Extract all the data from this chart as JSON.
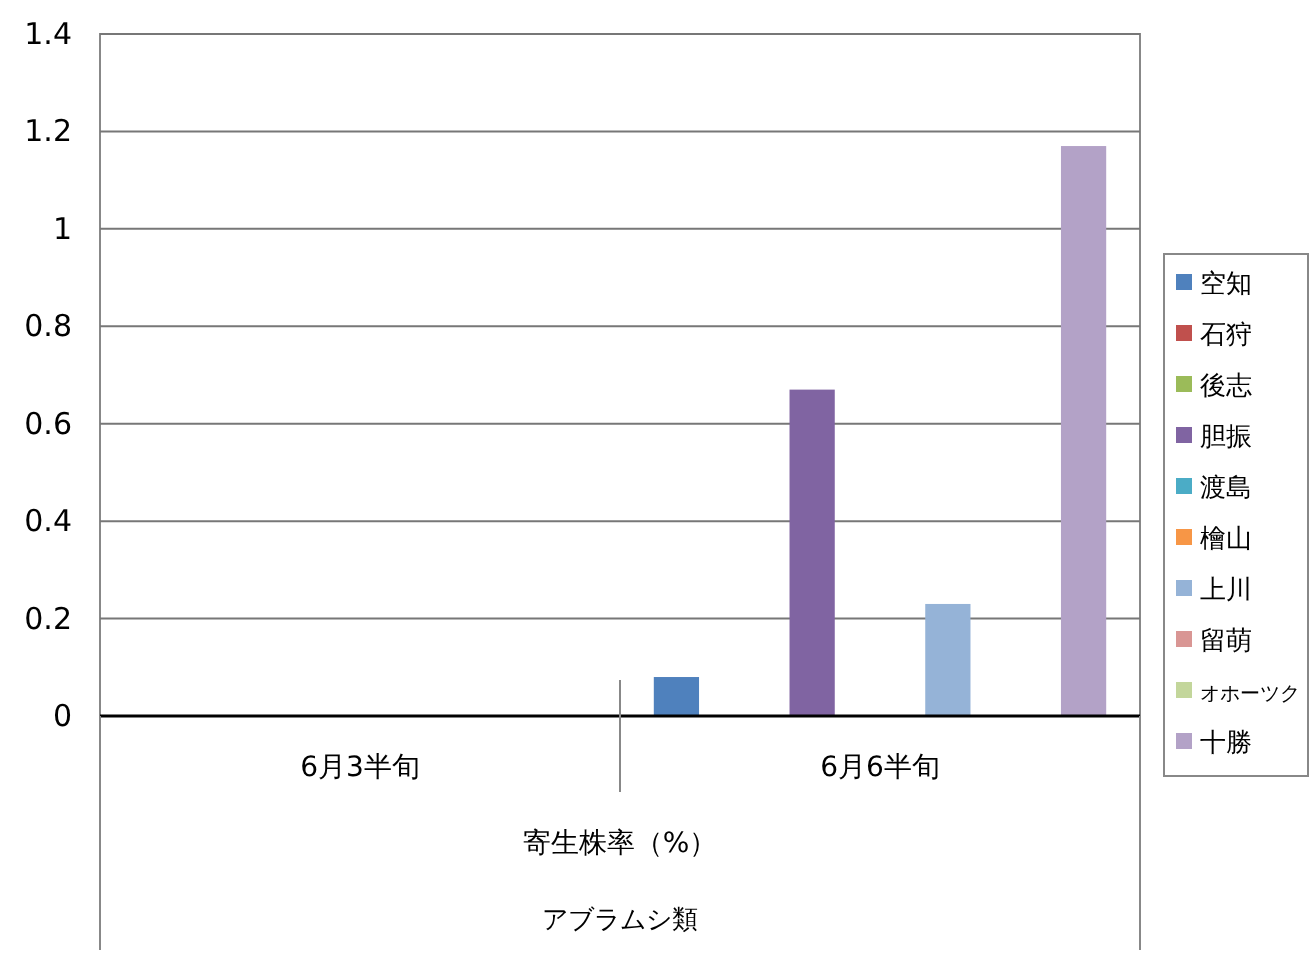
{
  "chart_data": {
    "type": "bar",
    "categories": [
      "6月3半旬",
      "6月6半旬"
    ],
    "xlabel": "寄生株率（%）",
    "annotations": [
      "アブラムシ類"
    ],
    "ylim": [
      0,
      1.4
    ],
    "yticks": [
      0,
      0.2,
      0.4,
      0.6,
      0.8,
      1,
      1.2,
      1.4
    ],
    "grid": "y",
    "legend": "right",
    "series": [
      {
        "name": "空知",
        "color": "#4f81bd",
        "values": [
          0,
          0.08
        ]
      },
      {
        "name": "石狩",
        "color": "#c0504d",
        "values": [
          0,
          0
        ]
      },
      {
        "name": "後志",
        "color": "#9bbb59",
        "values": [
          0,
          0
        ]
      },
      {
        "name": "胆振",
        "color": "#8064a2",
        "values": [
          0,
          0.67
        ]
      },
      {
        "name": "渡島",
        "color": "#4bacc6",
        "values": [
          0,
          0
        ]
      },
      {
        "name": "檜山",
        "color": "#f79646",
        "values": [
          0,
          0
        ]
      },
      {
        "name": "上川",
        "color": "#95b3d7",
        "values": [
          0,
          0.23
        ]
      },
      {
        "name": "留萌",
        "color": "#d99694",
        "values": [
          0,
          0
        ]
      },
      {
        "name": "オホーツク",
        "color": "#c3d69b",
        "values": [
          0,
          0
        ]
      },
      {
        "name": "十勝",
        "color": "#b3a2c7",
        "values": [
          0,
          1.17
        ]
      }
    ]
  }
}
